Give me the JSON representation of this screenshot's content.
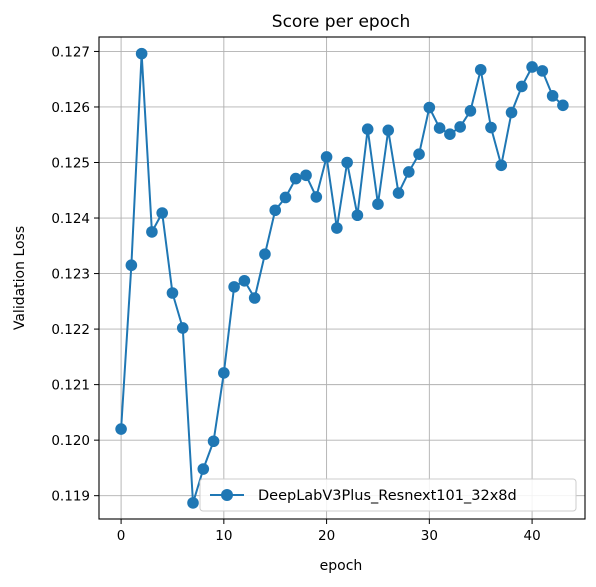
{
  "chart_data": {
    "type": "line",
    "title": "Score per epoch",
    "xlabel": "epoch",
    "ylabel": "Validation Loss",
    "xlim": [
      -2.15,
      45.15
    ],
    "ylim": [
      0.11858,
      0.12726
    ],
    "xticks": [
      0,
      10,
      20,
      30,
      40
    ],
    "xtick_labels": [
      "0",
      "10",
      "20",
      "30",
      "40"
    ],
    "yticks": [
      0.119,
      0.12,
      0.121,
      0.122,
      0.123,
      0.124,
      0.125,
      0.126,
      0.127
    ],
    "ytick_labels": [
      "0.119",
      "0.120",
      "0.121",
      "0.122",
      "0.123",
      "0.124",
      "0.125",
      "0.126",
      "0.127"
    ],
    "grid": true,
    "legend_position": "lower-right",
    "series": [
      {
        "name": "DeepLabV3Plus_Resnext101_32x8d",
        "color": "#1f77b4",
        "marker": "circle",
        "x": [
          0,
          1,
          2,
          3,
          4,
          5,
          6,
          7,
          8,
          9,
          10,
          11,
          12,
          13,
          14,
          15,
          16,
          17,
          18,
          19,
          20,
          21,
          22,
          23,
          24,
          25,
          26,
          27,
          28,
          29,
          30,
          31,
          32,
          33,
          34,
          35,
          36,
          37,
          38,
          39,
          40,
          41,
          42,
          43
        ],
        "y": [
          0.1202,
          0.12315,
          0.12696,
          0.12375,
          0.12409,
          0.12265,
          0.12202,
          0.11887,
          0.11948,
          0.11998,
          0.12121,
          0.12276,
          0.12287,
          0.12256,
          0.12335,
          0.12414,
          0.12437,
          0.12471,
          0.12477,
          0.12438,
          0.1251,
          0.12382,
          0.125,
          0.12405,
          0.1256,
          0.12425,
          0.12558,
          0.12445,
          0.12483,
          0.12515,
          0.12599,
          0.12562,
          0.12551,
          0.12564,
          0.12593,
          0.12667,
          0.12563,
          0.12495,
          0.1259,
          0.12637,
          0.12672,
          0.12665,
          0.1262,
          0.12603
        ]
      }
    ]
  }
}
